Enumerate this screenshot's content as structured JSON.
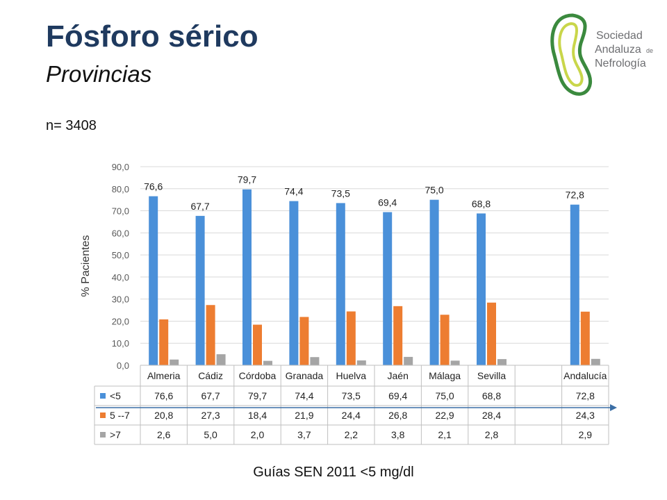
{
  "header": {
    "title": "Fósforo sérico",
    "subtitle": "Provincias",
    "n_label": "n= 3408",
    "footer": "Guías SEN 2011 <5 mg/dl"
  },
  "logo": {
    "line1": "Sociedad",
    "line2": "Andaluza",
    "line2_suffix": "de",
    "line3": "Nefrología"
  },
  "colors": {
    "lt5": "#4a90d9",
    "mid": "#ed7d31",
    "gt7": "#a5a5a5",
    "title": "#1f3a5f",
    "logo_green": "#3b8a3e"
  },
  "chart_data": {
    "type": "bar",
    "ylabel": "% Pacientes",
    "ylim": [
      0,
      90
    ],
    "yticks": [
      "0,0",
      "10,0",
      "20,0",
      "30,0",
      "40,0",
      "50,0",
      "60,0",
      "70,0",
      "80,0",
      "90,0"
    ],
    "grid": true,
    "categories": [
      "Almeria",
      "Cádiz",
      "Córdoba",
      "Granada",
      "Huelva",
      "Jaén",
      "Málaga",
      "Sevilla",
      "",
      "Andalucía"
    ],
    "series": [
      {
        "name": "<5",
        "values": [
          76.6,
          67.7,
          79.7,
          74.4,
          73.5,
          69.4,
          75.0,
          68.8,
          null,
          72.8
        ],
        "labels": [
          "76,6",
          "67,7",
          "79,7",
          "74,4",
          "73,5",
          "69,4",
          "75,0",
          "68,8",
          "",
          "72,8"
        ]
      },
      {
        "name": "5 --7",
        "values": [
          20.8,
          27.3,
          18.4,
          21.9,
          24.4,
          26.8,
          22.9,
          28.4,
          null,
          24.3
        ],
        "labels": [
          "20,8",
          "27,3",
          "18,4",
          "21,9",
          "24,4",
          "26,8",
          "22,9",
          "28,4",
          "",
          "24,3"
        ]
      },
      {
        "name": ">7",
        "values": [
          2.6,
          5.0,
          2.0,
          3.7,
          2.2,
          3.8,
          2.1,
          2.8,
          null,
          2.9
        ],
        "labels": [
          "2,6",
          "5,0",
          "2,0",
          "3,7",
          "2,2",
          "3,8",
          "2,1",
          "2,8",
          "",
          "2,9"
        ]
      }
    ],
    "data_labels_series": "<5"
  }
}
